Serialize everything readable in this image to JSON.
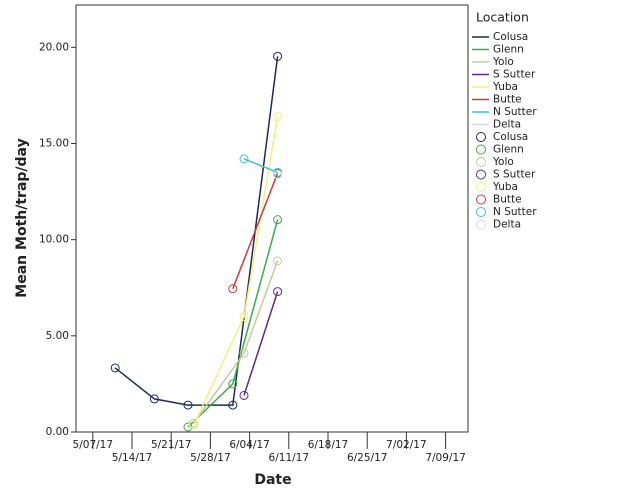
{
  "chart_data": {
    "type": "line",
    "xlabel": "Date",
    "ylabel": "Mean Moth/trap/day",
    "legend_title": "Location",
    "xlim": [
      "2017-05-04",
      "2017-07-13"
    ],
    "xticks": [
      {
        "value": "2017-05-07",
        "label": "5/07/17"
      },
      {
        "value": "2017-05-14",
        "label": "5/14/17"
      },
      {
        "value": "2017-05-21",
        "label": "5/21/17"
      },
      {
        "value": "2017-05-28",
        "label": "5/28/17"
      },
      {
        "value": "2017-06-04",
        "label": "6/04/17"
      },
      {
        "value": "2017-06-11",
        "label": "6/11/17"
      },
      {
        "value": "2017-06-18",
        "label": "6/18/17"
      },
      {
        "value": "2017-06-25",
        "label": "6/25/17"
      },
      {
        "value": "2017-07-02",
        "label": "7/02/17"
      },
      {
        "value": "2017-07-09",
        "label": "7/09/17"
      }
    ],
    "ylim": [
      0,
      22.2
    ],
    "yticks": [
      {
        "value": 0,
        "label": "0.00"
      },
      {
        "value": 5,
        "label": "5.00"
      },
      {
        "value": 10,
        "label": "10.00"
      },
      {
        "value": 15,
        "label": "15.00"
      },
      {
        "value": 20,
        "label": "20.00"
      }
    ],
    "series": [
      {
        "name": "Colusa",
        "color": "#1f2a5a",
        "x": [
          "2017-05-11",
          "2017-05-18",
          "2017-05-24",
          "2017-06-01",
          "2017-06-09"
        ],
        "values": [
          3.33,
          1.72,
          1.4,
          1.4,
          19.53
        ]
      },
      {
        "name": "Glenn",
        "color": "#3aaa4a",
        "x": [
          "2017-05-24",
          "2017-06-01",
          "2017-06-09"
        ],
        "values": [
          0.26,
          2.5,
          11.04
        ]
      },
      {
        "name": "Yolo",
        "color": "#c8c8a0",
        "x": [
          "2017-05-25",
          "2017-06-03",
          "2017-06-09"
        ],
        "values": [
          0.45,
          4.1,
          8.9
        ]
      },
      {
        "name": "S Sutter",
        "color": "#5a2d82",
        "x": [
          "2017-06-03",
          "2017-06-09"
        ],
        "values": [
          1.9,
          7.3
        ]
      },
      {
        "name": "Yuba",
        "color": "#f0f07a",
        "x": [
          "2017-05-25",
          "2017-06-03",
          "2017-06-09"
        ],
        "values": [
          0.35,
          6.0,
          16.4
        ]
      },
      {
        "name": "Butte",
        "color": "#d03a3a",
        "x": [
          "2017-06-01",
          "2017-06-09"
        ],
        "values": [
          7.45,
          13.45
        ]
      },
      {
        "name": "N Sutter",
        "color": "#40c0c8",
        "x": [
          "2017-06-03",
          "2017-06-09"
        ],
        "values": [
          14.2,
          13.5
        ]
      },
      {
        "name": "Delta",
        "color": "#d8d8d8",
        "x": [
          "2017-06-09"
        ],
        "values": [
          13.4
        ]
      }
    ]
  }
}
